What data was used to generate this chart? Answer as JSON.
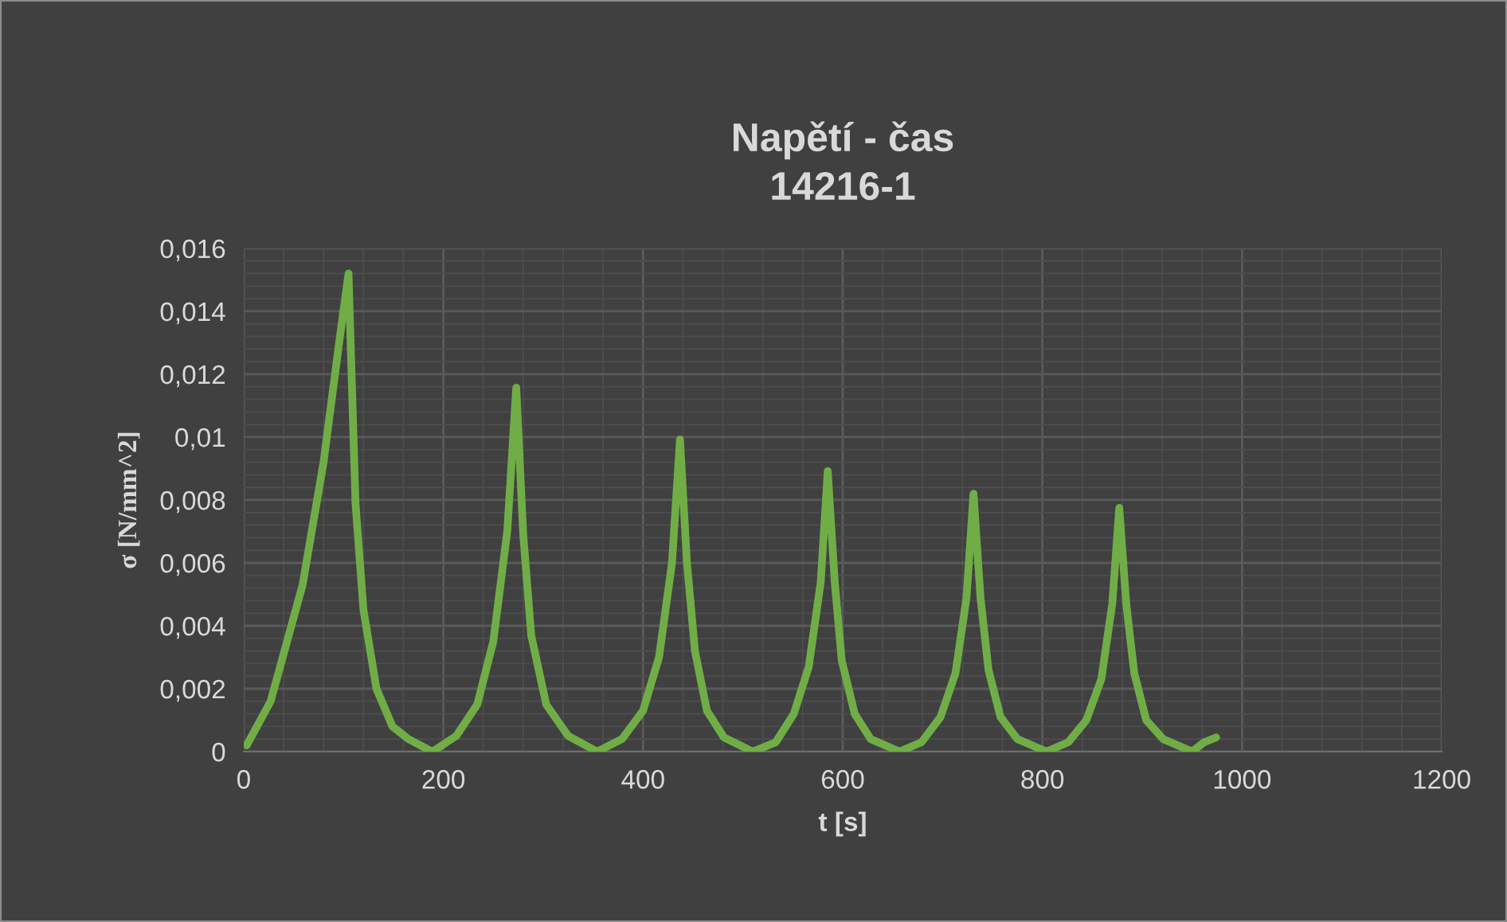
{
  "chart_data": {
    "type": "line",
    "title": "Napětí - čas\n14216-1",
    "xlabel": "t [s]",
    "ylabel": "σ [N/mm^2]",
    "series": [
      {
        "color": "#70ad47",
        "x": [
          3,
          27,
          59,
          80,
          96,
          105,
          112,
          120,
          133,
          149,
          165,
          189,
          213,
          234,
          250,
          264,
          273,
          280,
          288,
          303,
          325,
          354,
          379,
          400,
          416,
          429,
          437,
          444,
          452,
          464,
          481,
          510,
          533,
          551,
          566,
          578,
          585,
          592,
          599,
          612,
          628,
          657,
          679,
          698,
          713,
          724,
          731,
          738,
          746,
          758,
          775,
          804,
          826,
          844,
          859,
          870,
          877,
          884,
          892,
          904,
          921,
          950,
          962,
          974
        ],
        "values": [
          0.0002,
          0.0016,
          0.0053,
          0.0092,
          0.0131,
          0.0152,
          0.0079,
          0.0045,
          0.002,
          0.0008,
          0.0004,
          0,
          0.0005,
          0.0015,
          0.0035,
          0.007,
          0.01157,
          0.0069,
          0.0037,
          0.0015,
          0.0005,
          0,
          0.0004,
          0.0013,
          0.003,
          0.006,
          0.00993,
          0.006,
          0.0032,
          0.0013,
          0.00045,
          0,
          0.0003,
          0.0012,
          0.0027,
          0.0054,
          0.00892,
          0.0054,
          0.0029,
          0.0012,
          0.0004,
          0,
          0.0003,
          0.0011,
          0.0025,
          0.0049,
          0.0082,
          0.0049,
          0.0026,
          0.0011,
          0.0004,
          0,
          0.0003,
          0.001,
          0.0023,
          0.0047,
          0.00775,
          0.0047,
          0.0025,
          0.001,
          0.0004,
          0,
          0.0003,
          0.00045
        ]
      }
    ],
    "xlim": [
      0,
      1200
    ],
    "xticks": [
      0,
      200,
      400,
      600,
      800,
      1000,
      1200
    ],
    "ylim": [
      0,
      0.016
    ],
    "yticks": [
      0,
      {
        "value": 0.002,
        "label": "0,002"
      },
      {
        "value": 0.004,
        "label": "0,004"
      },
      {
        "value": 0.006,
        "label": "0,006"
      },
      {
        "value": 0.008,
        "label": "0,008"
      },
      {
        "value": 0.01,
        "label": "0,01"
      },
      {
        "value": 0.012,
        "label": "0,012"
      },
      {
        "value": 0.014,
        "label": "0,014"
      },
      {
        "value": 0.016,
        "label": "0,016"
      }
    ],
    "grid": true,
    "legend": false,
    "marker": "none",
    "line_style": "solid"
  }
}
